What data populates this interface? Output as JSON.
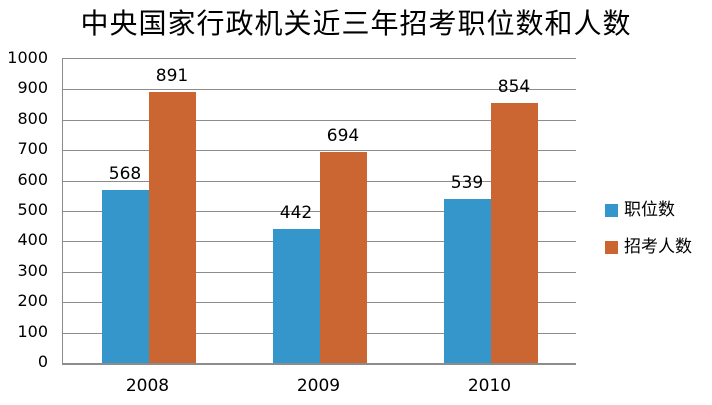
{
  "chart_data": {
    "type": "bar",
    "title": "中央国家行政机关近三年招考职位数和人数",
    "categories": [
      "2008",
      "2009",
      "2010"
    ],
    "series": [
      {
        "name": "职位数",
        "color": "#3496CB",
        "values": [
          568,
          442,
          539
        ]
      },
      {
        "name": "招考人数",
        "color": "#CB6633",
        "values": [
          891,
          694,
          854
        ]
      }
    ],
    "ylim": [
      0,
      1000
    ],
    "yticks": [
      0,
      100,
      200,
      300,
      400,
      500,
      600,
      700,
      800,
      900,
      1000
    ],
    "xlabel": "",
    "ylabel": "",
    "grid": true,
    "data_labels": true,
    "legend_position": "right"
  },
  "colors": {
    "grid": "#8c8c8c",
    "axis": "#8c8c8c",
    "text": "#000000",
    "background": "#ffffff"
  }
}
